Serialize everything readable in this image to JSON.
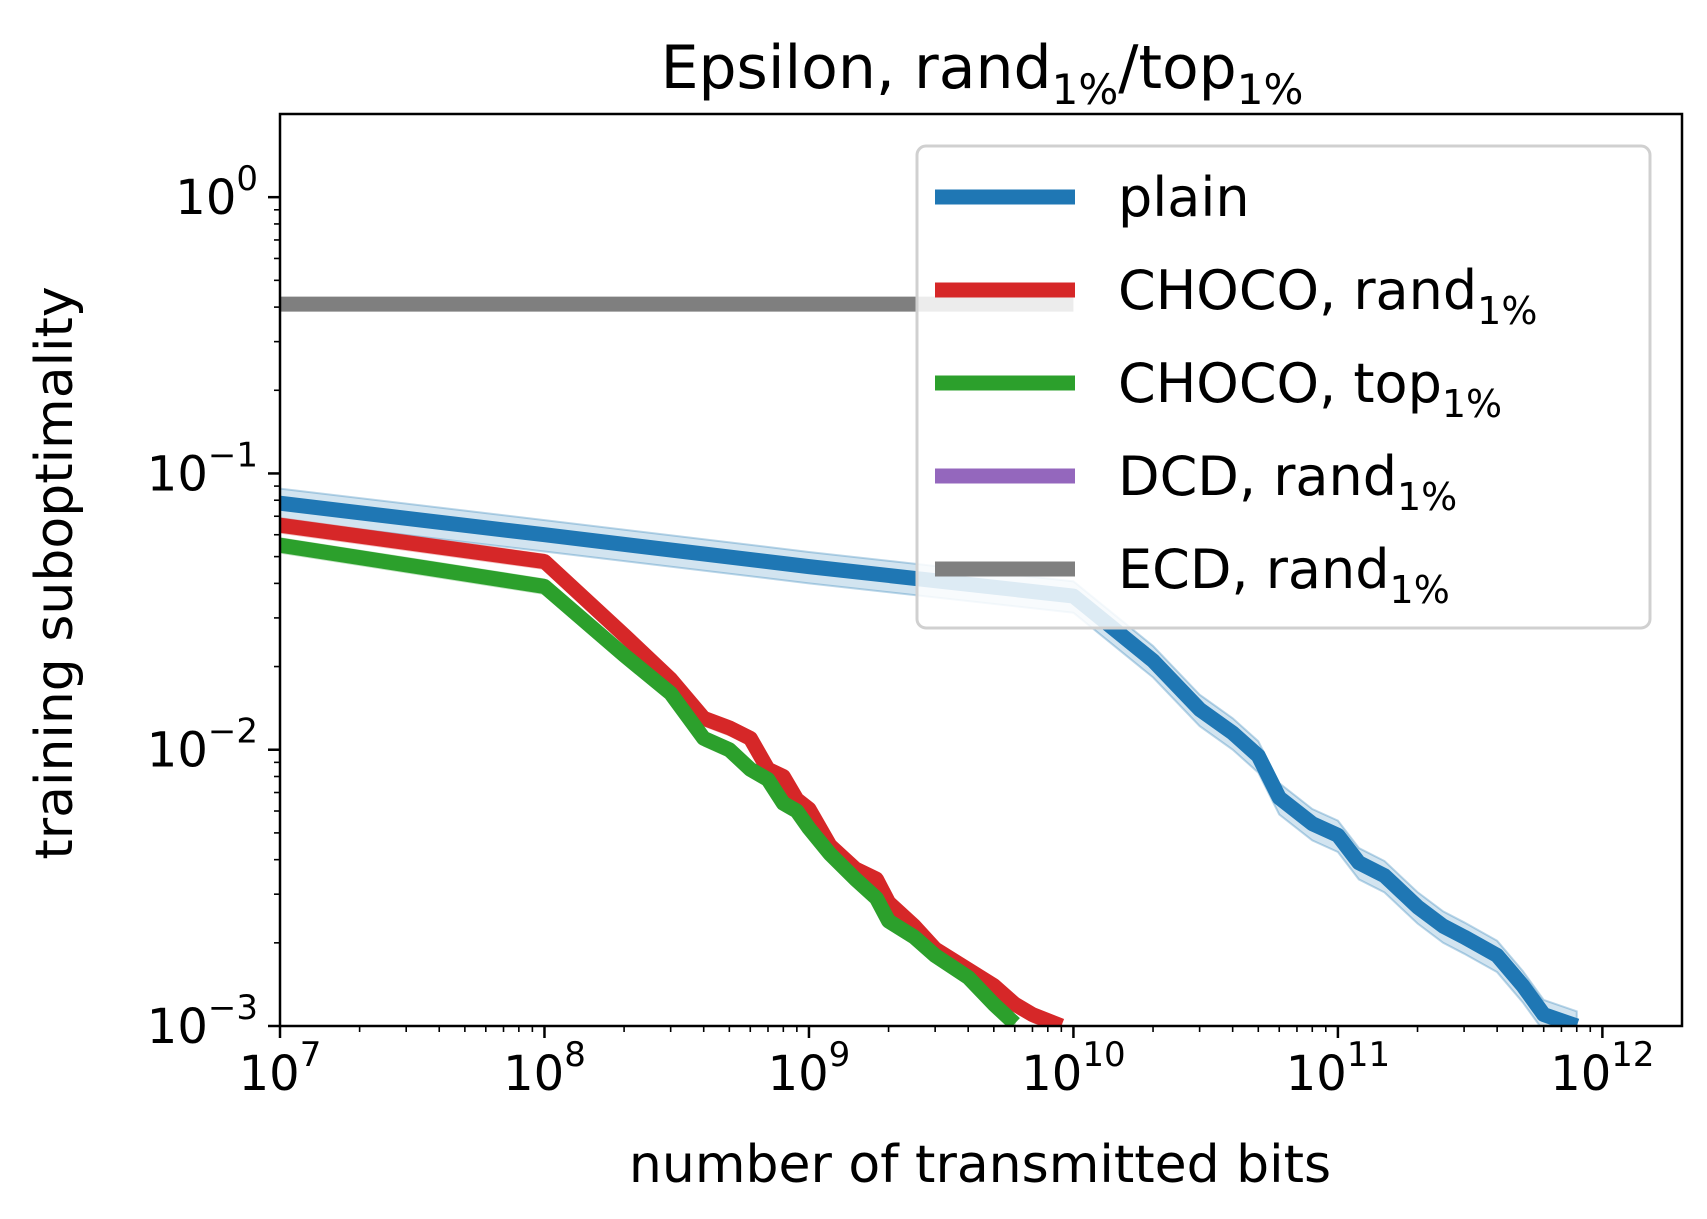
{
  "chart_data": {
    "type": "line",
    "title": {
      "prefix": "Epsilon, rand",
      "sub1": "1%",
      "mid": "/top",
      "sub2": "1%"
    },
    "xlabel": "number of transmitted bits",
    "ylabel": "training suboptimality",
    "x_scale": "log",
    "y_scale": "log",
    "xlim": [
      10000000,
      2000000000000
    ],
    "ylim": [
      0.001,
      2.0
    ],
    "x_ticks": [
      {
        "value": 10000000,
        "base": "10",
        "exp": "7"
      },
      {
        "value": 100000000,
        "base": "10",
        "exp": "8"
      },
      {
        "value": 1000000000,
        "base": "10",
        "exp": "9"
      },
      {
        "value": 10000000000,
        "base": "10",
        "exp": "10"
      },
      {
        "value": 100000000000,
        "base": "10",
        "exp": "11"
      },
      {
        "value": 1000000000000,
        "base": "10",
        "exp": "12"
      }
    ],
    "y_ticks": [
      {
        "value": 1,
        "base": "10",
        "exp": "0"
      },
      {
        "value": 0.1,
        "base": "10",
        "exp": "−1"
      },
      {
        "value": 0.01,
        "base": "10",
        "exp": "−2"
      },
      {
        "value": 0.001,
        "base": "10",
        "exp": "−3"
      }
    ],
    "legend_position": "top-right",
    "series": [
      {
        "name": "plain",
        "label_sub": "",
        "color": "#1f77b4",
        "band": 0.13,
        "x": [
          10000000,
          100000000,
          1000000000,
          10000000000,
          20000000000,
          30000000000,
          40000000000,
          50000000000,
          60000000000,
          80000000000,
          100000000000,
          120000000000,
          150000000000,
          200000000000,
          250000000000,
          300000000000,
          400000000000,
          500000000000,
          600000000000,
          800000000000
        ],
        "y": [
          0.078,
          0.06,
          0.046,
          0.036,
          0.021,
          0.014,
          0.0115,
          0.0095,
          0.0067,
          0.0054,
          0.0049,
          0.0039,
          0.0035,
          0.0027,
          0.0023,
          0.0021,
          0.0018,
          0.0014,
          0.0011,
          0.001
        ]
      },
      {
        "name": "CHOCO,  rand",
        "label_sub": "1%",
        "color": "#d62728",
        "band": 0.06,
        "x": [
          10000000,
          100000000,
          200000000,
          300000000,
          400000000,
          500000000,
          600000000,
          700000000,
          800000000,
          900000000,
          1000000000,
          1200000000,
          1500000000,
          1800000000,
          2000000000,
          2500000000,
          3000000000,
          4000000000,
          5000000000,
          6000000000,
          7000000000,
          9000000000
        ],
        "y": [
          0.065,
          0.048,
          0.026,
          0.018,
          0.013,
          0.012,
          0.011,
          0.0085,
          0.008,
          0.0066,
          0.0061,
          0.0045,
          0.0037,
          0.0034,
          0.0028,
          0.0023,
          0.0019,
          0.0016,
          0.0014,
          0.0012,
          0.0011,
          0.001
        ]
      },
      {
        "name": "CHOCO,  top",
        "label_sub": "1%",
        "color": "#2ca02c",
        "band": 0.06,
        "x": [
          10000000,
          100000000,
          200000000,
          300000000,
          400000000,
          500000000,
          600000000,
          700000000,
          800000000,
          900000000,
          1000000000,
          1200000000,
          1500000000,
          1800000000,
          2000000000,
          2500000000,
          3000000000,
          4000000000,
          5000000000,
          6000000000
        ],
        "y": [
          0.055,
          0.039,
          0.022,
          0.016,
          0.011,
          0.01,
          0.0085,
          0.0078,
          0.0064,
          0.006,
          0.0052,
          0.0042,
          0.0034,
          0.0029,
          0.0024,
          0.0021,
          0.0018,
          0.0015,
          0.0012,
          0.00102
        ]
      },
      {
        "name": "DCD,  rand",
        "label_sub": "1%",
        "color": "#9467bd",
        "band": 0,
        "x": [],
        "y": []
      },
      {
        "name": "ECD,  rand",
        "label_sub": "1%",
        "color": "#7f7f7f",
        "band": 0,
        "x": [
          10000000,
          100000000,
          1000000000,
          10000000000
        ],
        "y": [
          0.41,
          0.41,
          0.41,
          0.41
        ]
      }
    ]
  }
}
